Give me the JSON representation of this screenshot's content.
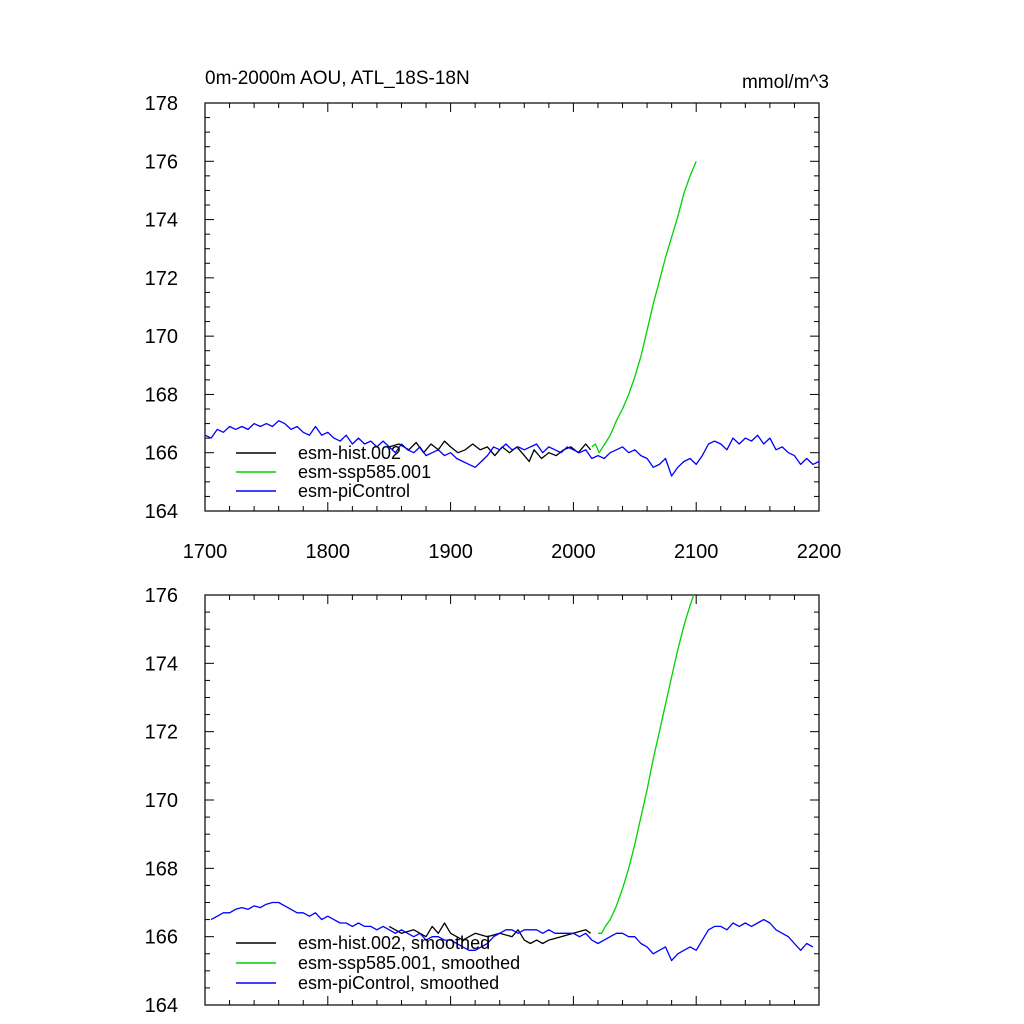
{
  "colors": {
    "hist": "#000000",
    "ssp585": "#00d200",
    "picontrol": "#0000ff",
    "frame": "#000000"
  },
  "chart_data": [
    {
      "type": "line",
      "title": "0m-2000m AOU, ATL_18S-18N",
      "units": "mmol/m^3",
      "xlabel": "",
      "ylabel": "",
      "xlim": [
        1700,
        2200
      ],
      "ylim": [
        164,
        178
      ],
      "x_ticks": [
        "1700",
        "1800",
        "1900",
        "2000",
        "2100",
        "2200"
      ],
      "y_ticks": [
        "164",
        "166",
        "168",
        "170",
        "172",
        "174",
        "176",
        "178"
      ],
      "legend_position": "lower-left",
      "series": [
        {
          "name": "esm-hist.002",
          "color": "#000000",
          "x": [
            1850,
            1858,
            1866,
            1872,
            1878,
            1884,
            1890,
            1895,
            1900,
            1906,
            1912,
            1918,
            1924,
            1930,
            1936,
            1942,
            1948,
            1954,
            1960,
            1964,
            1968,
            1974,
            1980,
            1986,
            1992,
            1998,
            2004,
            2010,
            2014
          ],
          "y": [
            166.2,
            166.3,
            166.1,
            166.35,
            166.0,
            166.3,
            166.1,
            166.4,
            166.2,
            166.0,
            166.1,
            166.3,
            166.1,
            166.2,
            165.9,
            166.2,
            166.0,
            166.2,
            165.9,
            165.7,
            166.1,
            165.8,
            166.0,
            165.9,
            166.1,
            166.2,
            166.0,
            166.3,
            166.1
          ]
        },
        {
          "name": "esm-ssp585.001",
          "color": "#00d200",
          "x": [
            2015,
            2018,
            2021,
            2024,
            2027,
            2030,
            2035,
            2040,
            2045,
            2050,
            2055,
            2060,
            2065,
            2070,
            2075,
            2080,
            2085,
            2090,
            2095,
            2100
          ],
          "y": [
            166.2,
            166.3,
            166.0,
            166.2,
            166.4,
            166.6,
            167.1,
            167.5,
            168.0,
            168.6,
            169.3,
            170.2,
            171.1,
            171.9,
            172.7,
            173.4,
            174.1,
            174.9,
            175.5,
            176.0
          ]
        },
        {
          "name": "esm-piControl",
          "color": "#0000ff",
          "x": [
            1700,
            1705,
            1710,
            1715,
            1720,
            1725,
            1730,
            1735,
            1740,
            1745,
            1750,
            1755,
            1760,
            1765,
            1770,
            1775,
            1780,
            1785,
            1790,
            1795,
            1800,
            1805,
            1810,
            1815,
            1820,
            1825,
            1830,
            1835,
            1840,
            1845,
            1850,
            1855,
            1860,
            1865,
            1870,
            1875,
            1880,
            1885,
            1890,
            1895,
            1900,
            1905,
            1910,
            1915,
            1920,
            1925,
            1930,
            1935,
            1940,
            1945,
            1950,
            1955,
            1960,
            1965,
            1970,
            1975,
            1980,
            1985,
            1990,
            1995,
            2000,
            2005,
            2010,
            2015,
            2020,
            2025,
            2030,
            2035,
            2040,
            2045,
            2050,
            2055,
            2060,
            2065,
            2070,
            2075,
            2080,
            2085,
            2090,
            2095,
            2100,
            2105,
            2110,
            2115,
            2120,
            2125,
            2130,
            2135,
            2140,
            2145,
            2150,
            2155,
            2160,
            2165,
            2170,
            2175,
            2180,
            2185,
            2190,
            2195,
            2200
          ],
          "y": [
            166.6,
            166.5,
            166.8,
            166.7,
            166.9,
            166.8,
            166.9,
            166.8,
            167.0,
            166.9,
            167.0,
            166.9,
            167.1,
            167.0,
            166.8,
            166.9,
            166.7,
            166.6,
            166.9,
            166.6,
            166.7,
            166.5,
            166.4,
            166.6,
            166.3,
            166.5,
            166.3,
            166.4,
            166.2,
            166.4,
            166.2,
            166.0,
            166.3,
            166.1,
            166.0,
            166.2,
            165.9,
            166.0,
            166.1,
            165.9,
            166.0,
            165.8,
            165.7,
            165.6,
            165.5,
            165.7,
            165.9,
            166.2,
            166.1,
            166.3,
            166.1,
            166.2,
            166.1,
            166.2,
            166.3,
            166.0,
            166.2,
            166.1,
            166.0,
            166.2,
            166.1,
            166.0,
            166.1,
            165.8,
            165.9,
            165.8,
            166.0,
            166.1,
            166.2,
            166.0,
            166.1,
            165.9,
            165.8,
            165.5,
            165.6,
            165.8,
            165.2,
            165.5,
            165.7,
            165.8,
            165.6,
            165.9,
            166.3,
            166.4,
            166.3,
            166.1,
            166.5,
            166.3,
            166.5,
            166.4,
            166.6,
            166.3,
            166.5,
            166.1,
            166.2,
            166.0,
            165.9,
            165.6,
            165.8,
            165.6,
            165.7
          ]
        }
      ]
    },
    {
      "type": "line",
      "title": "",
      "xlim": [
        1700,
        2200
      ],
      "ylim": [
        164,
        176
      ],
      "x_ticks": [],
      "y_ticks": [
        "164",
        "166",
        "168",
        "170",
        "172",
        "174",
        "176"
      ],
      "legend_position": "lower-left",
      "series": [
        {
          "name": "esm-hist.002, smoothed",
          "color": "#000000",
          "x": [
            1850,
            1860,
            1870,
            1880,
            1885,
            1890,
            1895,
            1900,
            1910,
            1920,
            1930,
            1940,
            1950,
            1955,
            1960,
            1965,
            1970,
            1975,
            1980,
            1990,
            2000,
            2010,
            2014
          ],
          "y": [
            166.3,
            166.1,
            166.2,
            166.0,
            166.3,
            166.1,
            166.4,
            166.1,
            165.9,
            166.1,
            166.0,
            166.1,
            166.0,
            166.2,
            165.9,
            165.8,
            165.9,
            165.8,
            165.9,
            166.0,
            166.1,
            166.2,
            166.1
          ]
        },
        {
          "name": "esm-ssp585.001, smoothed",
          "color": "#00d200",
          "x": [
            2020,
            2023,
            2026,
            2030,
            2035,
            2040,
            2045,
            2050,
            2055,
            2060,
            2065,
            2070,
            2075,
            2080,
            2085,
            2090,
            2095,
            2098
          ],
          "y": [
            166.1,
            166.1,
            166.3,
            166.5,
            166.9,
            167.4,
            168.0,
            168.7,
            169.5,
            170.3,
            171.2,
            172.0,
            172.8,
            173.6,
            174.4,
            175.1,
            175.7,
            176.0
          ]
        },
        {
          "name": "esm-piControl, smoothed",
          "color": "#0000ff",
          "x": [
            1705,
            1710,
            1715,
            1720,
            1725,
            1730,
            1735,
            1740,
            1745,
            1750,
            1755,
            1760,
            1765,
            1770,
            1775,
            1780,
            1785,
            1790,
            1795,
            1800,
            1805,
            1810,
            1815,
            1820,
            1825,
            1830,
            1835,
            1840,
            1845,
            1850,
            1855,
            1860,
            1865,
            1870,
            1875,
            1880,
            1885,
            1890,
            1895,
            1900,
            1905,
            1910,
            1915,
            1920,
            1925,
            1930,
            1935,
            1940,
            1945,
            1950,
            1955,
            1960,
            1965,
            1970,
            1975,
            1980,
            1985,
            1990,
            1995,
            2000,
            2005,
            2010,
            2015,
            2020,
            2025,
            2030,
            2035,
            2040,
            2045,
            2050,
            2055,
            2060,
            2065,
            2070,
            2075,
            2080,
            2085,
            2090,
            2095,
            2100,
            2105,
            2110,
            2115,
            2120,
            2125,
            2130,
            2135,
            2140,
            2145,
            2150,
            2155,
            2160,
            2165,
            2170,
            2175,
            2180,
            2185,
            2190,
            2195
          ],
          "y": [
            166.5,
            166.6,
            166.7,
            166.7,
            166.8,
            166.85,
            166.8,
            166.9,
            166.85,
            166.95,
            167.0,
            167.0,
            166.9,
            166.8,
            166.7,
            166.7,
            166.6,
            166.7,
            166.5,
            166.6,
            166.5,
            166.4,
            166.4,
            166.3,
            166.4,
            166.3,
            166.3,
            166.2,
            166.3,
            166.2,
            166.1,
            166.2,
            166.1,
            166.0,
            166.1,
            165.9,
            166.0,
            166.0,
            165.9,
            165.9,
            165.8,
            165.7,
            165.6,
            165.6,
            165.7,
            165.8,
            166.0,
            166.1,
            166.2,
            166.2,
            166.1,
            166.2,
            166.2,
            166.2,
            166.1,
            166.2,
            166.1,
            166.1,
            166.1,
            166.1,
            166.0,
            166.1,
            165.9,
            165.8,
            165.9,
            166.0,
            166.1,
            166.1,
            166.0,
            166.0,
            165.8,
            165.7,
            165.5,
            165.6,
            165.7,
            165.3,
            165.5,
            165.6,
            165.7,
            165.6,
            165.9,
            166.2,
            166.3,
            166.3,
            166.2,
            166.4,
            166.3,
            166.4,
            166.3,
            166.4,
            166.5,
            166.4,
            166.2,
            166.1,
            166.0,
            165.8,
            165.6,
            165.8,
            165.7
          ]
        }
      ]
    }
  ]
}
